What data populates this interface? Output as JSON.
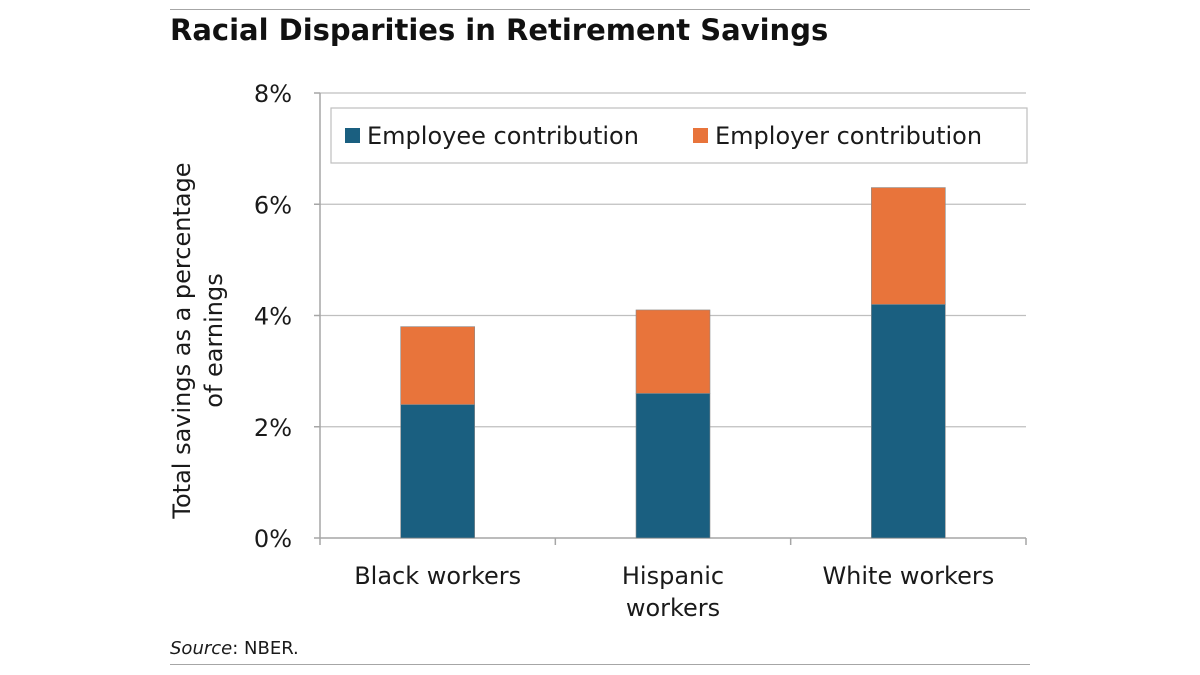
{
  "header": {
    "title": "Racial Disparities in Retirement Savings"
  },
  "footer": {
    "source_label": "Source",
    "source_text": ": NBER."
  },
  "chart_data": {
    "type": "bar",
    "stacked": true,
    "title": "Racial Disparities in Retirement Savings",
    "categories": [
      [
        "Black workers"
      ],
      [
        "Hispanic",
        "workers"
      ],
      [
        "White workers"
      ]
    ],
    "series": [
      {
        "name": "Employee contribution",
        "values": [
          2.4,
          2.6,
          4.2
        ],
        "color": "#1a5f80"
      },
      {
        "name": "Employer contribution",
        "values": [
          1.4,
          1.5,
          2.1
        ],
        "color": "#e8743b"
      }
    ],
    "ylabel": [
      "Total savings as a percentage",
      "of earnings"
    ],
    "ylim": [
      0,
      8
    ],
    "yticks": [
      0,
      2,
      4,
      6,
      8
    ],
    "ytick_labels": [
      "0%",
      "2%",
      "4%",
      "6%",
      "8%"
    ],
    "grid": true,
    "gridline_color": "#bfbfbf",
    "legend_position": "top-right"
  }
}
